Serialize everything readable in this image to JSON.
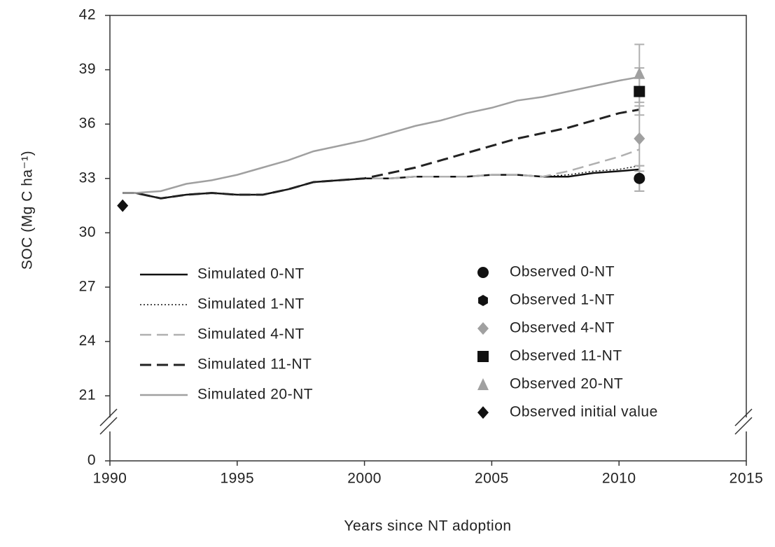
{
  "chart_data": {
    "type": "line",
    "xlabel": "Years since NT adoption",
    "ylabel": "SOC (Mg C ha⁻¹)",
    "xlim": [
      1990,
      2015
    ],
    "xticks": [
      1990,
      1995,
      2000,
      2005,
      2010,
      2015
    ],
    "ylim": [
      0,
      42
    ],
    "ybreak": [
      0,
      21
    ],
    "yticks": [
      0,
      21,
      24,
      27,
      30,
      33,
      36,
      39,
      42
    ],
    "x": [
      1990.5,
      1991,
      1992,
      1993,
      1994,
      1995,
      1996,
      1997,
      1998,
      1999,
      2000,
      2001,
      2002,
      2003,
      2004,
      2005,
      2006,
      2007,
      2008,
      2009,
      2010,
      2010.8
    ],
    "series": [
      {
        "name": "Simulated 0-NT",
        "type": "line",
        "color": "#111111",
        "dash": "none",
        "width": 2.5,
        "values": [
          32.2,
          32.2,
          31.9,
          32.1,
          32.2,
          32.1,
          32.1,
          32.4,
          32.8,
          32.9,
          33.0,
          33.0,
          33.1,
          33.1,
          33.1,
          33.2,
          33.2,
          33.1,
          33.1,
          33.3,
          33.4,
          33.5
        ]
      },
      {
        "name": "Simulated 1-NT",
        "type": "line",
        "color": "#111111",
        "dash": "2 3",
        "width": 1.5,
        "values": [
          32.2,
          32.2,
          31.9,
          32.1,
          32.2,
          32.1,
          32.1,
          32.4,
          32.8,
          32.9,
          33.0,
          33.0,
          33.1,
          33.1,
          33.1,
          33.2,
          33.2,
          33.1,
          33.2,
          33.4,
          33.5,
          33.7
        ]
      },
      {
        "name": "Simulated 4-NT",
        "type": "line",
        "color": "#b0b0b0",
        "dash": "16 8",
        "width": 2.5,
        "values": [
          32.2,
          32.2,
          31.9,
          32.1,
          32.2,
          32.1,
          32.1,
          32.4,
          32.8,
          32.9,
          33.0,
          33.0,
          33.1,
          33.1,
          33.1,
          33.2,
          33.2,
          33.1,
          33.4,
          33.8,
          34.2,
          34.6
        ]
      },
      {
        "name": "Simulated 11-NT",
        "type": "line",
        "color": "#222222",
        "dash": "16 8",
        "width": 3,
        "values": [
          32.2,
          32.2,
          31.9,
          32.1,
          32.2,
          32.1,
          32.1,
          32.4,
          32.8,
          32.9,
          33.0,
          33.3,
          33.6,
          34.0,
          34.4,
          34.8,
          35.2,
          35.5,
          35.8,
          36.2,
          36.6,
          36.8
        ]
      },
      {
        "name": "Simulated 20-NT",
        "type": "line",
        "color": "#a0a0a0",
        "dash": "none",
        "width": 2.5,
        "values": [
          32.2,
          32.2,
          32.3,
          32.7,
          32.9,
          33.2,
          33.6,
          34.0,
          34.5,
          34.8,
          35.1,
          35.5,
          35.9,
          36.2,
          36.6,
          36.9,
          37.3,
          37.5,
          37.8,
          38.1,
          38.4,
          38.6
        ]
      },
      {
        "name": "Observed 0-NT",
        "type": "scatter",
        "marker": "circle",
        "color": "#111111",
        "x": [
          2010.8
        ],
        "values": [
          33.0
        ],
        "errors": [
          0.7
        ]
      },
      {
        "name": "Observed 1-NT",
        "type": "scatter",
        "marker": "hexagon",
        "color": "#111111",
        "x": [
          2010.8
        ],
        "values": [
          33.0
        ],
        "errors": [
          0.7
        ]
      },
      {
        "name": "Observed 4-NT",
        "type": "scatter",
        "marker": "diamond",
        "color": "#a0a0a0",
        "x": [
          2010.8
        ],
        "values": [
          35.2
        ],
        "errors": [
          1.8
        ]
      },
      {
        "name": "Observed 11-NT",
        "type": "scatter",
        "marker": "square",
        "color": "#111111",
        "x": [
          2010.8
        ],
        "values": [
          37.8
        ],
        "errors": [
          1.3
        ]
      },
      {
        "name": "Observed 20-NT",
        "type": "scatter",
        "marker": "triangle",
        "color": "#a0a0a0",
        "x": [
          2010.8
        ],
        "values": [
          38.8
        ],
        "errors": [
          1.6
        ]
      },
      {
        "name": "Observed initial value",
        "type": "scatter",
        "marker": "diamond",
        "color": "#111111",
        "x": [
          1990.5
        ],
        "values": [
          31.5
        ]
      }
    ]
  }
}
